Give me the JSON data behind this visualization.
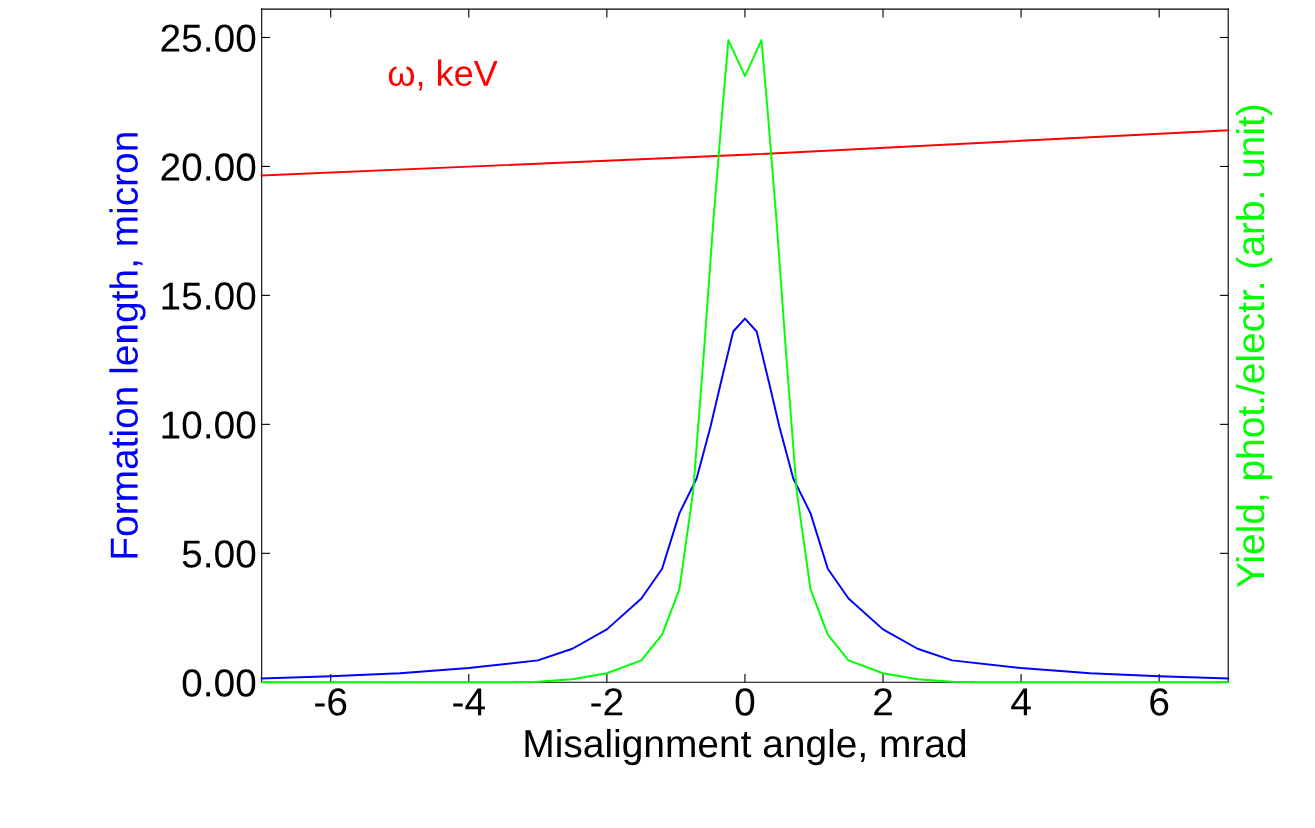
{
  "chart_data": {
    "type": "line",
    "xlabel": "Misalignment angle, mrad",
    "ylabel": "Formation length, micron",
    "y2label": "Yield, phot./electr. (arb. unit)",
    "xlim": [
      -7,
      7
    ],
    "ylim": [
      0,
      26.1
    ],
    "xticks": [
      -6,
      -4,
      -2,
      0,
      2,
      4,
      6
    ],
    "yticks": [
      {
        "value": 0,
        "label": "0.00"
      },
      {
        "value": 5,
        "label": "5.00"
      },
      {
        "value": 10,
        "label": "10.00"
      },
      {
        "value": 15,
        "label": "15.00"
      },
      {
        "value": 20,
        "label": "20.00"
      },
      {
        "value": 25,
        "label": "25.00"
      }
    ],
    "grid": false,
    "legend": false,
    "marker": "none",
    "line_style": "solid",
    "series": [
      {
        "name": "ω, keV",
        "color": "#ff0000",
        "x": [
          -7,
          0,
          7
        ],
        "values": [
          19.65,
          20.45,
          21.4
        ]
      },
      {
        "color": "#0000ff",
        "x": [
          -7,
          -6,
          -5,
          -4,
          -3,
          -2.5,
          -2,
          -1.5,
          -1.2,
          -0.95,
          -0.7,
          -0.5,
          -0.35,
          -0.17,
          0,
          0.17,
          0.35,
          0.5,
          0.7,
          0.95,
          1.2,
          1.5,
          2,
          2.5,
          3,
          4,
          5,
          6,
          7
        ],
        "values": [
          0.15,
          0.23,
          0.35,
          0.55,
          0.85,
          1.3,
          2.05,
          3.25,
          4.4,
          6.55,
          7.9,
          9.9,
          11.6,
          13.6,
          14.1,
          13.6,
          11.6,
          9.9,
          7.9,
          6.55,
          4.4,
          3.25,
          2.05,
          1.3,
          0.85,
          0.55,
          0.35,
          0.23,
          0.15
        ]
      },
      {
        "color": "#00ff00",
        "x": [
          -7,
          -3.3,
          -3,
          -2.5,
          -2,
          -1.5,
          -1.2,
          -0.95,
          -0.75,
          -0.6,
          -0.46,
          -0.33,
          -0.24,
          0,
          0.24,
          0.33,
          0.46,
          0.6,
          0.75,
          0.95,
          1.2,
          1.5,
          2,
          2.5,
          3,
          3.3,
          7
        ],
        "values": [
          0,
          0,
          0.02,
          0.12,
          0.35,
          0.85,
          1.85,
          3.6,
          7.4,
          12.6,
          17.8,
          22.1,
          24.9,
          23.5,
          24.9,
          22.1,
          17.8,
          12.6,
          7.4,
          3.6,
          1.85,
          0.85,
          0.35,
          0.12,
          0.02,
          0,
          0
        ]
      }
    ]
  }
}
